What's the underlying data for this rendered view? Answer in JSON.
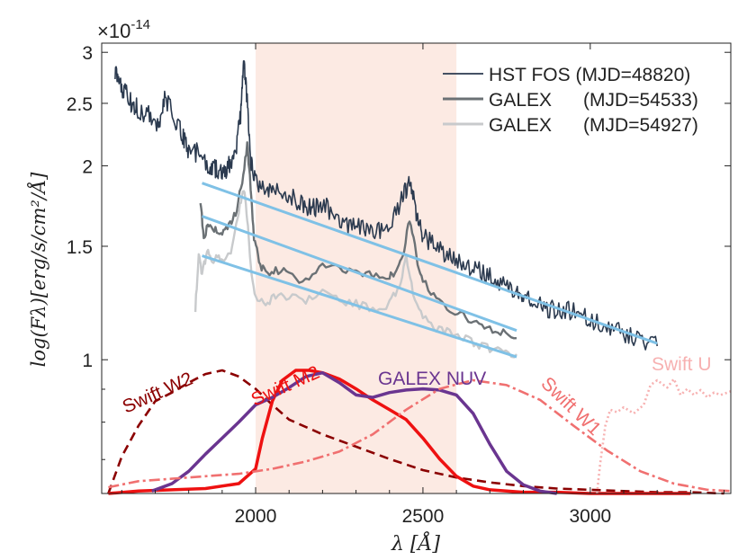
{
  "chart_data": {
    "type": "line",
    "title": "",
    "xlabel": "λ [Å]",
    "ylabel": "log(Fλ)[erg/s/cm²/Å]",
    "y_scale_label": "×10",
    "y_scale_exponent": "-14",
    "xlim": [
      1540,
      3420
    ],
    "ylim": [
      0.62,
      3.1
    ],
    "yscale": "log",
    "x_ticks": [
      2000,
      2500,
      3000
    ],
    "x_tick_labels": [
      "2000",
      "2500",
      "3000"
    ],
    "y_ticks": [
      1,
      1.5,
      2,
      2.5,
      3
    ],
    "y_tick_labels": [
      "1",
      "1.5",
      "2",
      "2.5",
      "3"
    ],
    "highlight_band": [
      2000,
      2600
    ],
    "legend_position": "top-right",
    "series": [
      {
        "name": "HST FOS (MJD=48820)",
        "legend_label": "HST FOS (MJD=48820)",
        "color": "#2b3a4f",
        "x": [
          1580,
          1595,
          1610,
          1630,
          1650,
          1680,
          1710,
          1730,
          1760,
          1780,
          1800,
          1830,
          1860,
          1880,
          1900,
          1920,
          1940,
          1955,
          1965,
          1975,
          1985,
          2000,
          2030,
          2060,
          2100,
          2140,
          2170,
          2200,
          2240,
          2280,
          2320,
          2360,
          2400,
          2440,
          2460,
          2480,
          2500,
          2540,
          2580,
          2620,
          2660,
          2700,
          2740,
          2780,
          2800,
          2830,
          2870,
          2910,
          2960,
          3000,
          3050,
          3100,
          3150,
          3200
        ],
        "y": [
          2.8,
          2.65,
          2.6,
          2.5,
          2.45,
          2.4,
          2.3,
          2.55,
          2.35,
          2.25,
          2.1,
          2.1,
          2.0,
          1.98,
          1.95,
          2.0,
          2.1,
          2.4,
          2.9,
          2.5,
          2.05,
          1.9,
          1.85,
          1.82,
          1.8,
          1.75,
          1.72,
          1.74,
          1.68,
          1.62,
          1.6,
          1.58,
          1.6,
          1.78,
          1.9,
          1.7,
          1.55,
          1.5,
          1.45,
          1.42,
          1.38,
          1.35,
          1.3,
          1.28,
          1.22,
          1.25,
          1.2,
          1.2,
          1.18,
          1.15,
          1.12,
          1.1,
          1.08,
          1.05
        ]
      },
      {
        "name": "GALEX (MJD=54533)",
        "legend_label": "GALEX      (MJD=54533)",
        "color": "#6b7175",
        "x": [
          1835,
          1845,
          1860,
          1880,
          1900,
          1920,
          1940,
          1960,
          1975,
          1985,
          1995,
          2010,
          2030,
          2060,
          2100,
          2150,
          2200,
          2250,
          2300,
          2350,
          2400,
          2420,
          2440,
          2460,
          2480,
          2500,
          2540,
          2580,
          2620,
          2660,
          2700,
          2740,
          2780
        ],
        "y": [
          1.75,
          1.55,
          1.62,
          1.6,
          1.58,
          1.62,
          1.68,
          1.9,
          2.15,
          1.85,
          1.55,
          1.42,
          1.36,
          1.38,
          1.36,
          1.32,
          1.4,
          1.38,
          1.36,
          1.35,
          1.34,
          1.38,
          1.45,
          1.65,
          1.45,
          1.32,
          1.25,
          1.2,
          1.17,
          1.14,
          1.12,
          1.1,
          1.08
        ]
      },
      {
        "name": "GALEX (MJD=54927)",
        "legend_label": "GALEX      (MJD=54927)",
        "color": "#c8cacc",
        "x": [
          1820,
          1830,
          1840,
          1855,
          1870,
          1890,
          1910,
          1930,
          1950,
          1965,
          1975,
          1985,
          2000,
          2030,
          2060,
          2100,
          2150,
          2200,
          2250,
          2300,
          2350,
          2400,
          2430,
          2450,
          2470,
          2500,
          2540,
          2580,
          2620,
          2660,
          2700,
          2740,
          2780
        ],
        "y": [
          1.2,
          1.45,
          1.35,
          1.48,
          1.42,
          1.45,
          1.42,
          1.5,
          1.7,
          1.85,
          1.65,
          1.4,
          1.25,
          1.22,
          1.26,
          1.25,
          1.24,
          1.28,
          1.24,
          1.22,
          1.2,
          1.22,
          1.3,
          1.45,
          1.28,
          1.16,
          1.12,
          1.1,
          1.08,
          1.06,
          1.04,
          1.03,
          1.02
        ]
      }
    ],
    "fit_lines": [
      {
        "name": "fit-hst",
        "color": "#7fc1e6",
        "x": [
          1840,
          3200
        ],
        "y": [
          1.88,
          1.06
        ]
      },
      {
        "name": "fit-galex-54533",
        "color": "#7fc1e6",
        "x": [
          1840,
          2780
        ],
        "y": [
          1.67,
          1.11
        ]
      },
      {
        "name": "fit-galex-54927",
        "color": "#7fc1e6",
        "x": [
          1840,
          2780
        ],
        "y": [
          1.45,
          1.01
        ]
      }
    ],
    "filter_curves": [
      {
        "name": "Swift W2",
        "label": "Swift W2",
        "color": "#8b0000",
        "dash": "10 6",
        "x": [
          1560,
          1600,
          1650,
          1700,
          1750,
          1800,
          1850,
          1900,
          1950,
          2000,
          2050,
          2100,
          2200,
          2300,
          2400,
          2500,
          2600,
          2700,
          2800,
          2900,
          3000,
          3100,
          3200,
          3300,
          3400
        ],
        "y": [
          0,
          0.3,
          0.55,
          0.75,
          0.82,
          0.9,
          0.97,
          1.0,
          0.95,
          0.85,
          0.72,
          0.6,
          0.48,
          0.38,
          0.28,
          0.19,
          0.13,
          0.09,
          0.06,
          0.04,
          0.03,
          0.02,
          0.01,
          0.01,
          0.0
        ]
      },
      {
        "name": "Swift M2",
        "label": "Swift M2",
        "color": "#ee1111",
        "dash": "",
        "x": [
          1560,
          1650,
          1750,
          1850,
          1950,
          2000,
          2020,
          2050,
          2080,
          2120,
          2160,
          2200,
          2250,
          2300,
          2350,
          2400,
          2450,
          2500,
          2550,
          2600,
          2650,
          2700,
          2800,
          2900,
          3000,
          3100,
          3200,
          3300
        ],
        "y": [
          0,
          0.02,
          0.03,
          0.04,
          0.08,
          0.2,
          0.45,
          0.75,
          0.92,
          1.0,
          1.0,
          0.98,
          0.93,
          0.85,
          0.76,
          0.68,
          0.6,
          0.45,
          0.28,
          0.14,
          0.06,
          0.03,
          0.01,
          0.01,
          0.0,
          0.0,
          0.0,
          0.0
        ]
      },
      {
        "name": "GALEX NUV",
        "label": "GALEX NUV",
        "color": "#6a3590",
        "dash": "",
        "x": [
          1690,
          1750,
          1800,
          1850,
          1900,
          1950,
          2000,
          2050,
          2100,
          2150,
          2200,
          2250,
          2300,
          2350,
          2400,
          2450,
          2500,
          2550,
          2600,
          2650,
          2700,
          2750,
          2800,
          2850,
          2900
        ],
        "y": [
          0.02,
          0.08,
          0.18,
          0.32,
          0.45,
          0.58,
          0.72,
          0.78,
          0.86,
          0.95,
          0.98,
          0.9,
          0.8,
          0.78,
          0.82,
          0.84,
          0.85,
          0.84,
          0.8,
          0.65,
          0.4,
          0.18,
          0.07,
          0.02,
          0.0
        ]
      },
      {
        "name": "Swift W1",
        "label": "Swift W1",
        "color": "#f07070",
        "dash": "12 4 3 4",
        "x": [
          1560,
          1650,
          1750,
          1850,
          1950,
          2050,
          2150,
          2250,
          2350,
          2450,
          2550,
          2650,
          2750,
          2850,
          2950,
          3050,
          3150,
          3250,
          3350,
          3420
        ],
        "y": [
          0.05,
          0.1,
          0.12,
          0.14,
          0.16,
          0.2,
          0.26,
          0.34,
          0.48,
          0.68,
          0.85,
          0.92,
          0.88,
          0.76,
          0.55,
          0.35,
          0.18,
          0.08,
          0.03,
          0.02
        ]
      },
      {
        "name": "Swift U",
        "label": "Swift U",
        "color": "#f7b1b1",
        "dash": "2 3",
        "x": [
          3020,
          3030,
          3045,
          3060,
          3080,
          3100,
          3130,
          3160,
          3180,
          3200,
          3230,
          3250,
          3270,
          3290,
          3310,
          3330,
          3350,
          3370,
          3390,
          3410,
          3420
        ],
        "y": [
          0.0,
          0.25,
          0.55,
          0.68,
          0.66,
          0.7,
          0.65,
          0.72,
          0.88,
          0.92,
          0.86,
          0.93,
          0.8,
          0.85,
          0.8,
          0.84,
          0.78,
          0.82,
          0.8,
          0.82,
          0.83
        ]
      }
    ]
  }
}
